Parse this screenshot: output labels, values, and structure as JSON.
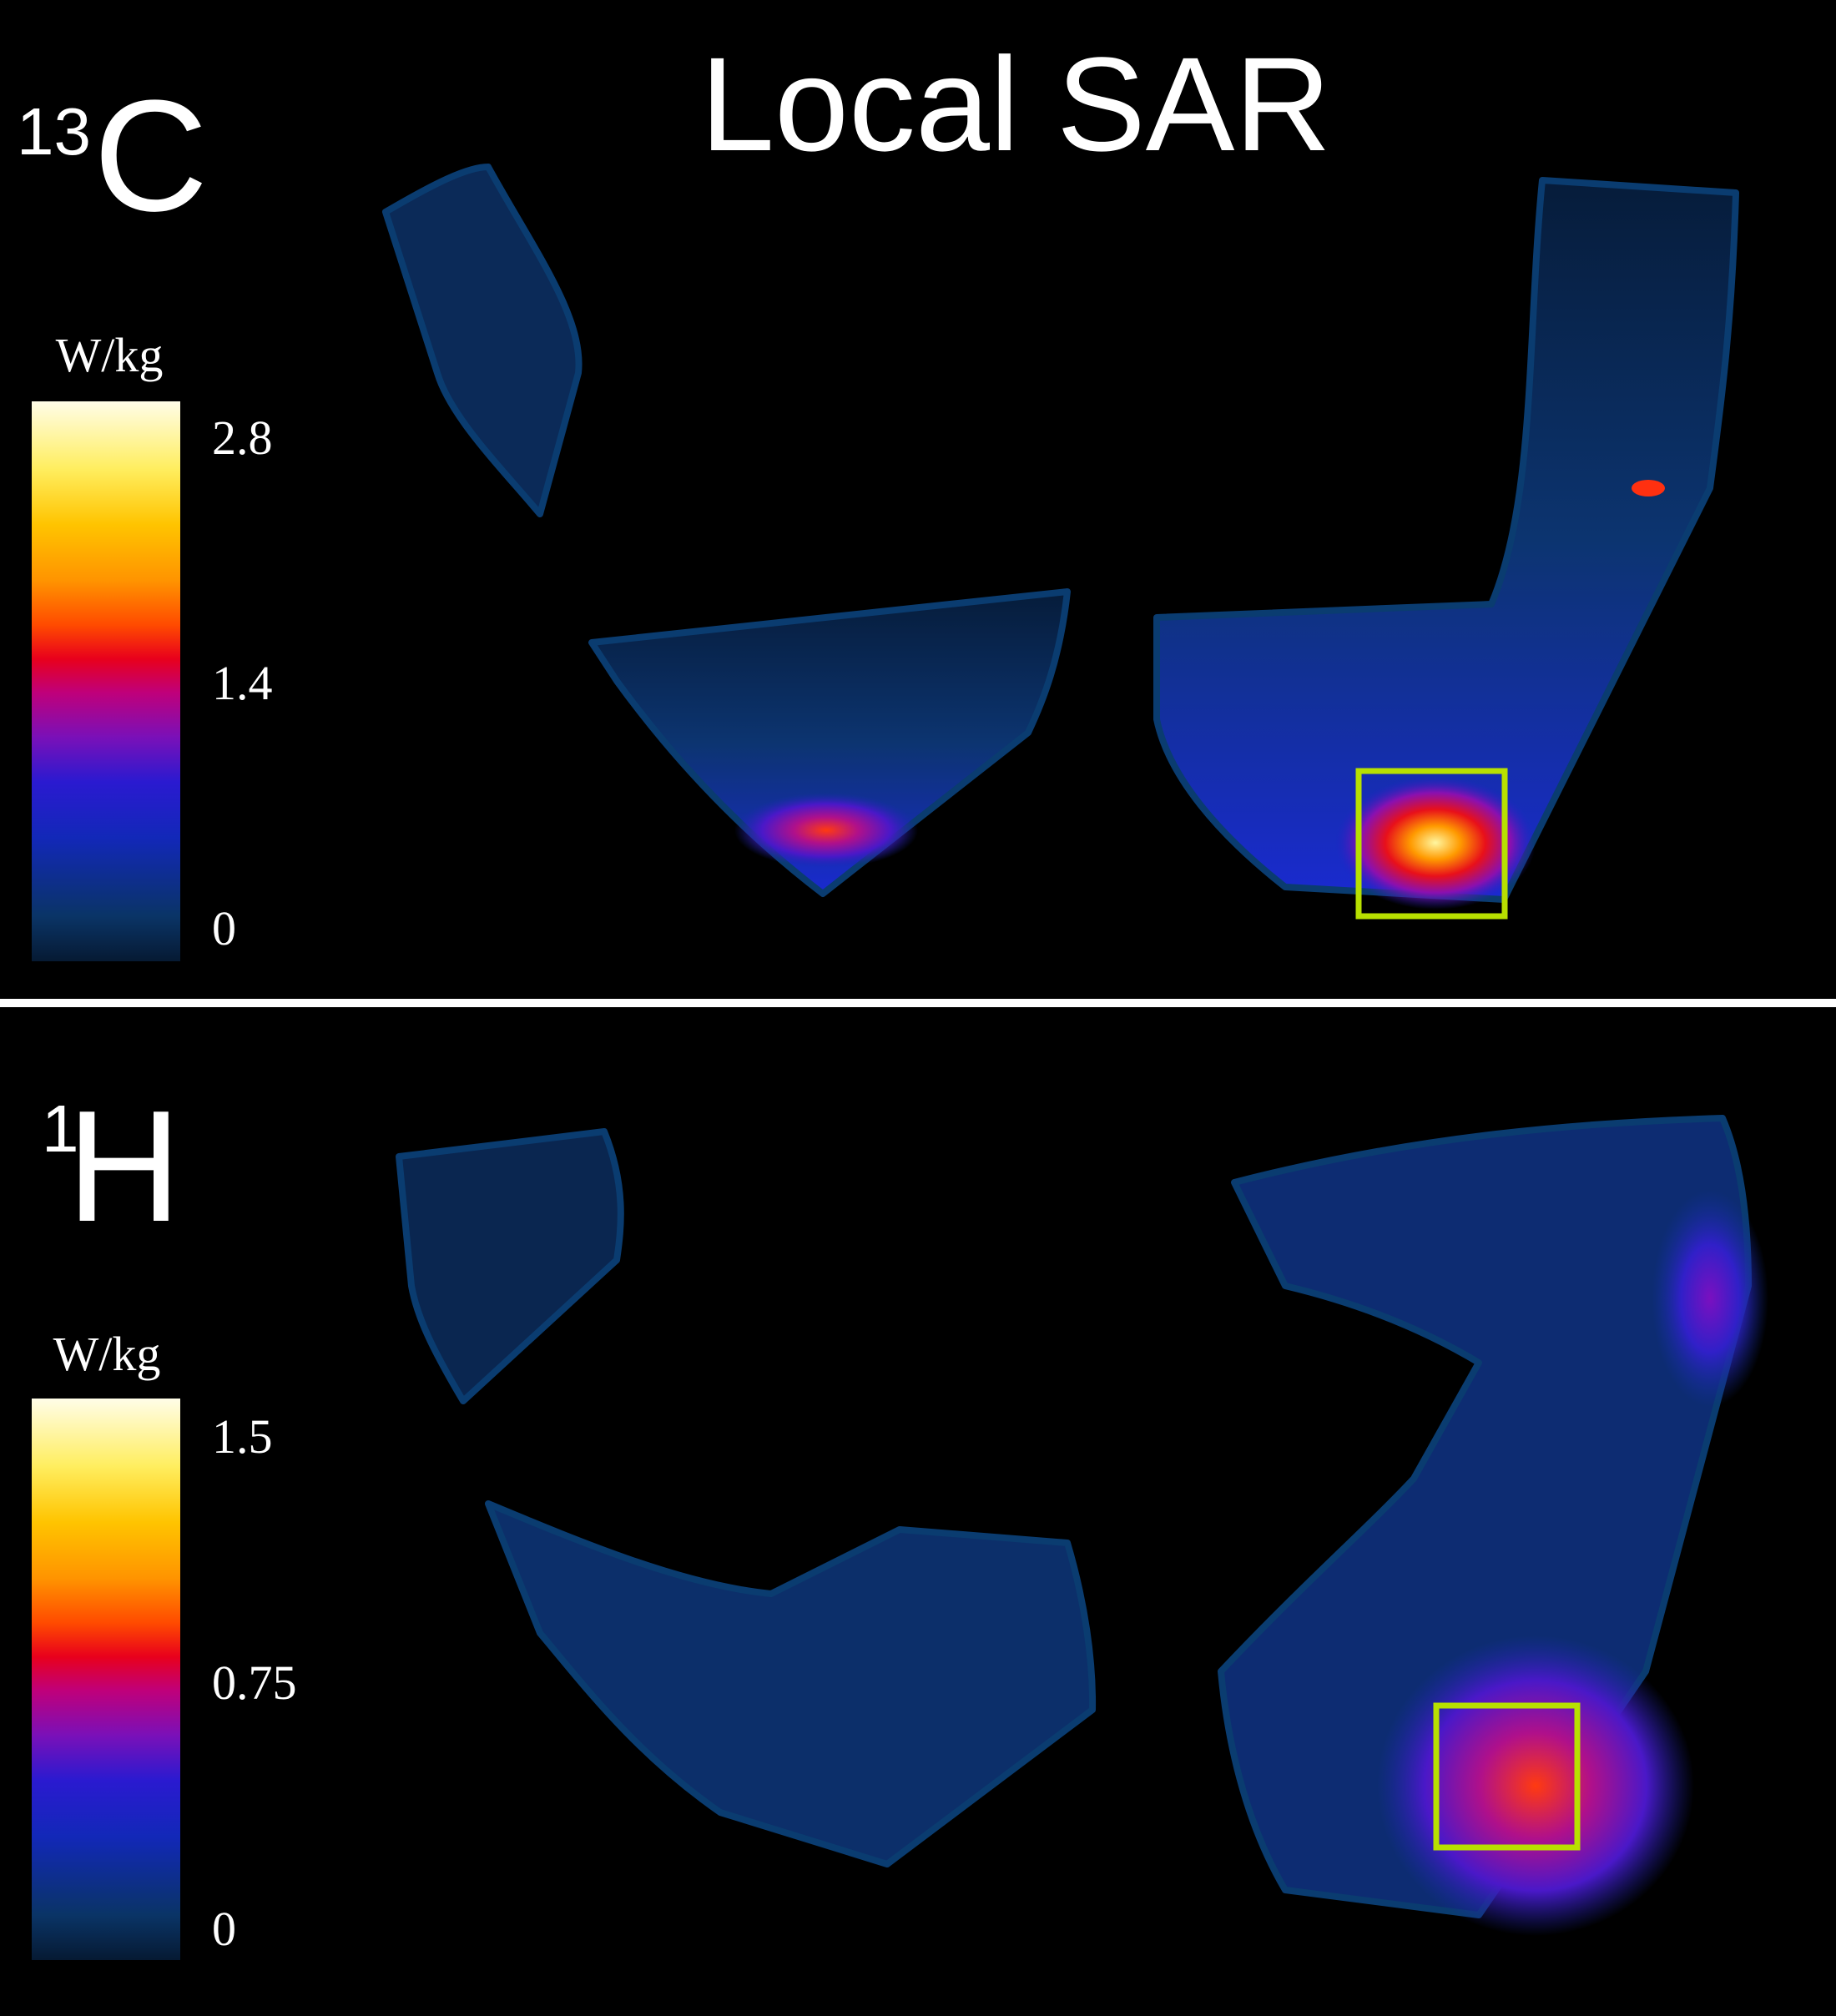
{
  "title": "Local SAR",
  "panels": [
    {
      "label": {
        "mass": "13",
        "element": "C"
      },
      "colorbar": {
        "unit": "W/kg",
        "ticks": [
          2.8,
          1.4,
          0
        ]
      }
    },
    {
      "label": {
        "mass": "1",
        "element": "H"
      },
      "colorbar": {
        "unit": "W/kg",
        "ticks": [
          1.5,
          0.75,
          0
        ]
      }
    }
  ]
}
